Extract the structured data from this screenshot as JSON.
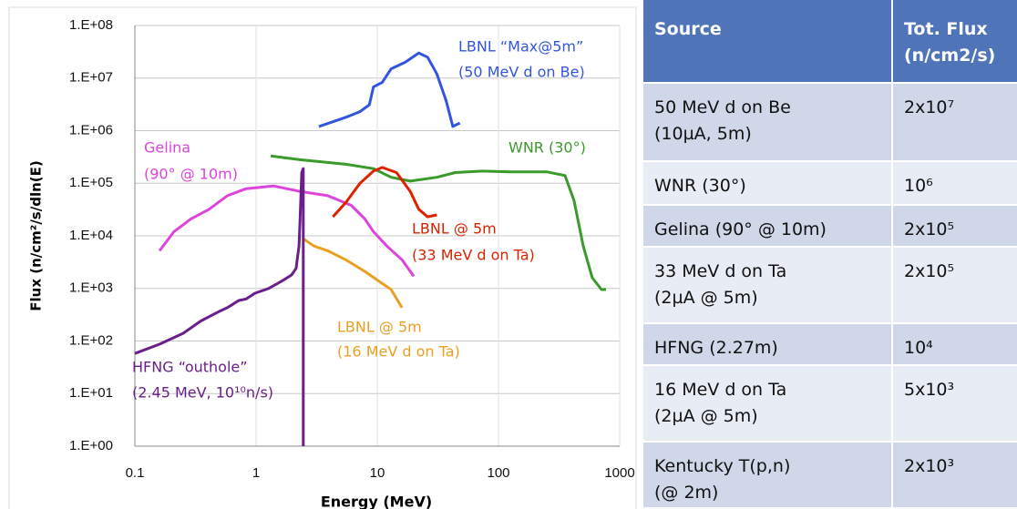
{
  "chart_data": {
    "type": "line",
    "xlabel": "Energy (MeV)",
    "ylabel": "Flux (n/cm²/s/dln(E)",
    "xscale": "log",
    "yscale": "log",
    "grid": true,
    "xlim": [
      0.1,
      1000
    ],
    "xticks": [
      0.1,
      1,
      10,
      100,
      1000
    ],
    "ylim": [
      1,
      100000000
    ],
    "yticks": [
      {
        "value": 1,
        "label": "1.E+00"
      },
      {
        "value": 10,
        "label": "1.E+01"
      },
      {
        "value": 100,
        "label": "1.E+02"
      },
      {
        "value": 1000,
        "label": "1.E+03"
      },
      {
        "value": 10000,
        "label": "1.E+04"
      },
      {
        "value": 100000,
        "label": "1.E+05"
      },
      {
        "value": 1000000,
        "label": "1.E+06"
      },
      {
        "value": 10000000,
        "label": "1.E+07"
      },
      {
        "value": 100000000,
        "label": "1.E+08"
      }
    ],
    "series": [
      {
        "color": "#3355dd",
        "x": [
          3.3,
          5.5,
          7.2,
          8.6,
          9.3,
          11,
          13,
          17,
          22,
          26,
          31,
          37,
          42,
          48
        ],
        "values": [
          1200000,
          1800000,
          2300000,
          3100000,
          6800000,
          8300000,
          15000000,
          20000000,
          30000000,
          25000000,
          12000000,
          3700000,
          1200000,
          1400000
        ]
      },
      {
        "color": "#3a9a2a",
        "x": [
          1.32,
          2.3,
          5.5,
          9.3,
          13,
          18.7,
          31,
          44,
          74,
          125,
          250,
          354,
          420,
          500,
          594,
          707,
          771
        ],
        "values": [
          330000,
          280000,
          230000,
          190000,
          130000,
          110000,
          130000,
          160000,
          170000,
          165000,
          165000,
          140000,
          47000,
          6400,
          1600,
          950,
          950
        ]
      },
      {
        "color": "#dd44dd",
        "x": [
          0.16,
          0.21,
          0.29,
          0.41,
          0.58,
          0.83,
          1.39,
          2.3,
          3.9,
          6.1,
          7.9,
          9.3,
          12,
          16,
          20
        ],
        "values": [
          5200,
          12000,
          21000,
          32000,
          58000,
          79000,
          89000,
          70000,
          58000,
          38000,
          21000,
          12000,
          6400,
          3500,
          1700
        ]
      },
      {
        "color": "#dd2200",
        "x": [
          4.3,
          5.5,
          7.2,
          9.3,
          11,
          14.4,
          18.7,
          22,
          26,
          31
        ],
        "values": [
          23000,
          43000,
          100000,
          170000,
          200000,
          160000,
          70000,
          32000,
          23000,
          25000
        ]
      },
      {
        "color": "#e8a020",
        "x": [
          2.46,
          3.0,
          3.9,
          5.5,
          7.9,
          10.2,
          13,
          16
        ],
        "values": [
          8800,
          6400,
          5200,
          3500,
          2100,
          1400,
          950,
          430
        ]
      },
      {
        "color": "#6a1f8a",
        "x": [
          0.1,
          0.16,
          0.25,
          0.35,
          0.49,
          0.58,
          0.72,
          0.83,
          0.98,
          1.27,
          1.65,
          1.96,
          2.14,
          2.26,
          2.3,
          2.38,
          2.45,
          2.45
        ],
        "values": [
          58,
          87,
          140,
          240,
          360,
          430,
          590,
          630,
          810,
          1000,
          1400,
          1800,
          2400,
          6400,
          17000,
          160000,
          190000,
          1
        ]
      }
    ],
    "annotations": [
      {
        "text": "LBNL “Max@5m”",
        "color": "#3355dd"
      },
      {
        "text": "(50 MeV d on Be)",
        "color": "#3355dd"
      },
      {
        "text": "WNR (30°)",
        "color": "#3a9a2a"
      },
      {
        "text": "Gelina",
        "color": "#dd44dd"
      },
      {
        "text": "(90° @ 10m)",
        "color": "#dd44dd"
      },
      {
        "text": "LBNL @ 5m",
        "color": "#dd2200"
      },
      {
        "text": "(33 MeV d on Ta)",
        "color": "#dd2200"
      },
      {
        "text": "LBNL @ 5m",
        "color": "#e8a020"
      },
      {
        "text": "(16 MeV d on Ta)",
        "color": "#e8a020"
      },
      {
        "text": "HFNG “outhole”",
        "color": "#6a1f8a"
      },
      {
        "text": "(2.45 MeV, 10¹⁰n/s)",
        "color": "#6a1f8a"
      }
    ]
  },
  "table": {
    "header": [
      "Source",
      "Tot. Flux\n(n/cm2/s)"
    ],
    "rows": [
      [
        "50 MeV d on Be\n(10µA, 5m)",
        "2x10⁷"
      ],
      [
        "WNR (30°)",
        "10⁶"
      ],
      [
        "Gelina (90° @ 10m)",
        "2x10⁵"
      ],
      [
        "33 MeV d on Ta\n(2µA @ 5m)",
        "2x10⁵"
      ],
      [
        "HFNG (2.27m)",
        "10⁴"
      ],
      [
        "16 MeV d on Ta\n(2µA @ 5m)",
        "5x10³"
      ],
      [
        "Kentucky T(p,n)\n(@ 2m)",
        "2x10³"
      ]
    ]
  }
}
